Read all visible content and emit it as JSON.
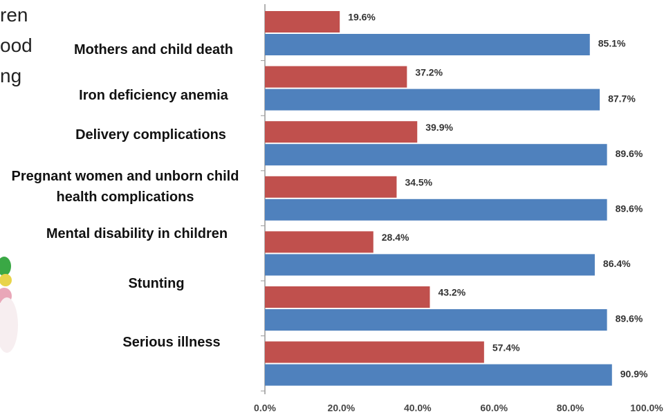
{
  "slide_fragments": [
    "ren",
    "ood",
    "ng"
  ],
  "chart_data": {
    "type": "hbar",
    "categories": [
      "Mothers and child death",
      "Iron deficiency anemia",
      "Delivery complications",
      "Pregnant women and unborn child health complications",
      "Mental disability in children",
      "Stunting",
      "Serious illness"
    ],
    "series": [
      {
        "color": "#c0504d",
        "values": [
          19.6,
          37.2,
          39.9,
          34.5,
          28.4,
          43.2,
          57.4
        ],
        "value_labels": [
          "19.6%",
          "37.2%",
          "39.9%",
          "34.5%",
          "28.4%",
          "43.2%",
          "57.4%"
        ]
      },
      {
        "color": "#4f81bd",
        "values": [
          85.1,
          87.7,
          89.6,
          89.6,
          86.4,
          89.6,
          90.9
        ],
        "value_labels": [
          "85.1%",
          "87.7%",
          "89.6%",
          "89.6%",
          "86.4%",
          "89.6%",
          "90.9%"
        ]
      }
    ],
    "xlim": [
      0,
      100
    ],
    "xticks": [
      {
        "value": 0,
        "label": "0.0%"
      },
      {
        "value": 20,
        "label": "20.0%"
      },
      {
        "value": 40,
        "label": "40.0%"
      },
      {
        "value": 60,
        "label": "60.0%"
      },
      {
        "value": 80,
        "label": "80.0%"
      },
      {
        "value": 100,
        "label": "100.0%"
      }
    ],
    "grid": false
  }
}
